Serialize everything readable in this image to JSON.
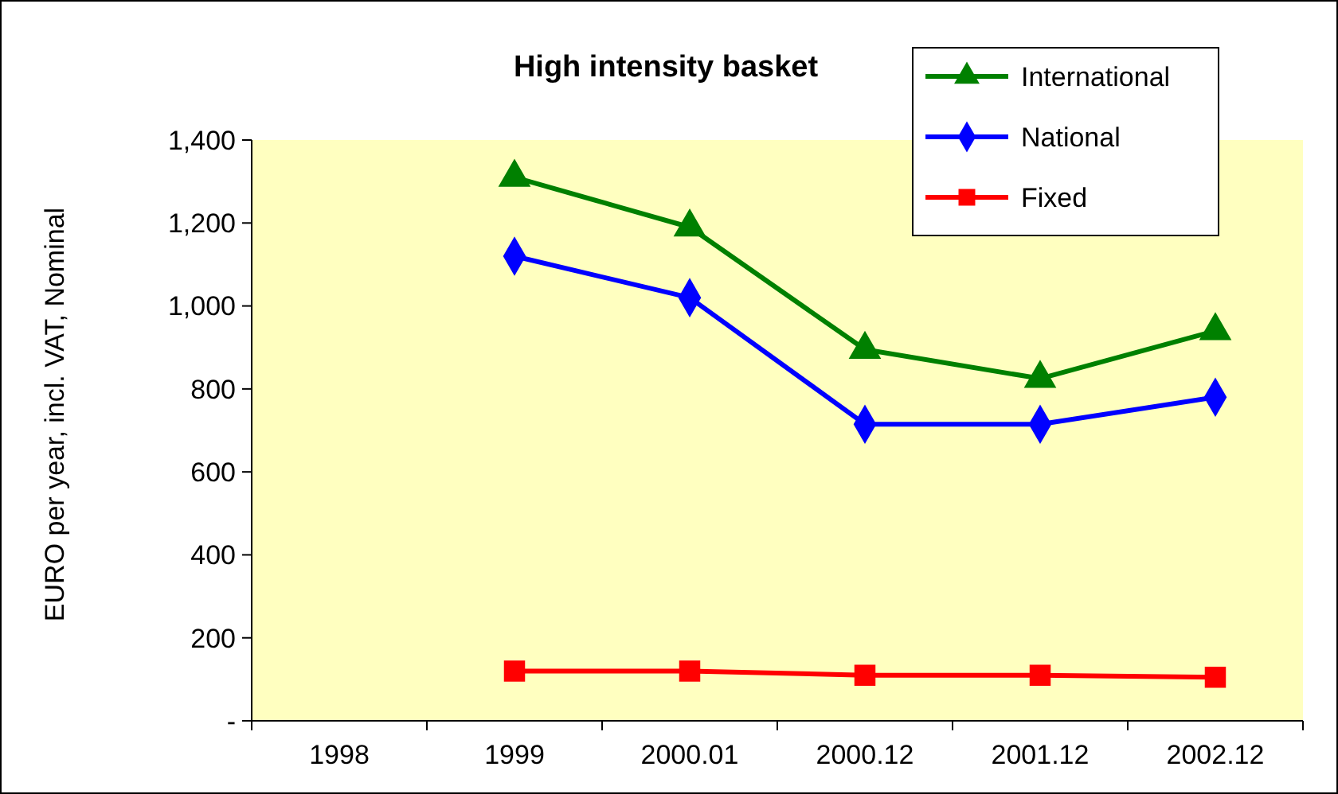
{
  "chart_data": {
    "type": "line",
    "title": "High intensity basket",
    "ylabel": "EURO per year, incl. VAT,  Nominal",
    "categories": [
      "1998",
      "1999",
      "2000.01",
      "2000.12",
      "2001.12",
      "2002.12"
    ],
    "series": [
      {
        "name": "International",
        "color": "#008000",
        "marker": "triangle",
        "values": [
          null,
          1310,
          1190,
          895,
          825,
          940
        ]
      },
      {
        "name": "National",
        "color": "#0000ff",
        "marker": "diamond",
        "values": [
          null,
          1120,
          1020,
          715,
          715,
          780
        ]
      },
      {
        "name": "Fixed",
        "color": "#ff0000",
        "marker": "square",
        "values": [
          null,
          120,
          120,
          110,
          110,
          105
        ]
      }
    ],
    "ylim": [
      0,
      1400
    ],
    "yticks": [
      {
        "value": 0,
        "label": "-"
      },
      {
        "value": 200,
        "label": "200"
      },
      {
        "value": 400,
        "label": "400"
      },
      {
        "value": 600,
        "label": "600"
      },
      {
        "value": 800,
        "label": "800"
      },
      {
        "value": 1000,
        "label": "1,000"
      },
      {
        "value": 1200,
        "label": "1,200"
      },
      {
        "value": 1400,
        "label": "1,400"
      }
    ],
    "grid": false,
    "legend": "top right",
    "line_style": "solid"
  }
}
